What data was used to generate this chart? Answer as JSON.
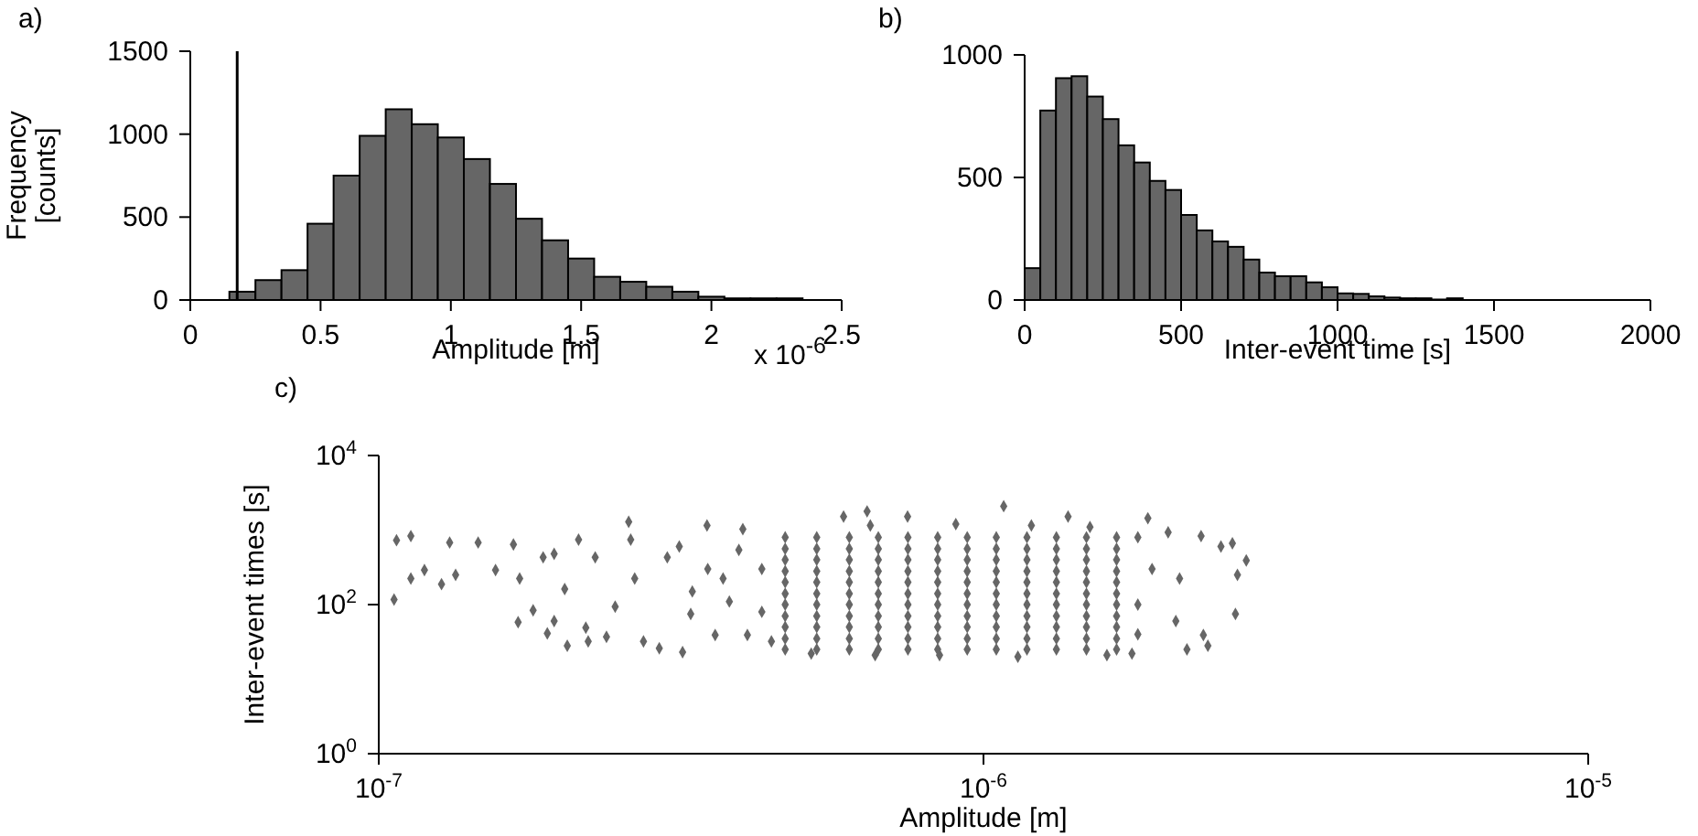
{
  "chart_data": [
    {
      "type": "histogram",
      "xlabel": "Amplitude [m]",
      "ylabel": "Frequency [counts]",
      "annotations": [
        "a)",
        "x 10$^{-6}$"
      ],
      "color": "#666666",
      "bins": [
        0.15,
        0.25,
        0.35,
        0.45,
        0.55,
        0.65,
        0.75,
        0.85,
        0.95,
        1.05,
        1.15,
        1.25,
        1.35,
        1.45,
        1.55,
        1.65,
        1.75,
        1.85,
        1.95,
        2.05,
        2.15,
        2.25,
        2.35
      ],
      "values": [
        50,
        120,
        180,
        460,
        750,
        990,
        1150,
        1060,
        980,
        850,
        700,
        490,
        360,
        250,
        140,
        110,
        80,
        50,
        20,
        10,
        10,
        10
      ],
      "xlim": [
        0,
        2.5
      ],
      "xticks": [
        0,
        0.5,
        1,
        1.5,
        2,
        2.5
      ],
      "ylim": [
        0,
        1500
      ],
      "yticks": [
        0,
        500,
        1000,
        1500
      ],
      "ref_lines": [
        {
          "axis": "x",
          "value": 0.18,
          "color": "#000000"
        }
      ]
    },
    {
      "type": "histogram",
      "xlabel": "Inter-event time [s]",
      "annotations": [
        "b)"
      ],
      "color": "#666666",
      "bins": [
        0,
        50,
        100,
        150,
        200,
        250,
        300,
        350,
        400,
        450,
        500,
        550,
        600,
        650,
        700,
        750,
        800,
        850,
        900,
        950,
        1000,
        1050,
        1100,
        1150,
        1200,
        1250,
        1300,
        1350,
        1400
      ],
      "values": [
        130,
        773,
        905,
        913,
        830,
        738,
        631,
        561,
        486,
        449,
        347,
        284,
        239,
        217,
        165,
        112,
        97,
        97,
        72,
        52,
        27,
        25,
        15,
        10,
        7,
        7,
        2,
        7
      ],
      "xlim": [
        0,
        2000
      ],
      "xticks": [
        0,
        500,
        1000,
        1500,
        2000
      ],
      "ylim": [
        0,
        1000
      ],
      "yticks": [
        0,
        500,
        1000
      ]
    },
    {
      "type": "scatter",
      "xlabel": "Amplitude [m]",
      "ylabel": "Inter-event times [s]",
      "annotations": [
        "c)"
      ],
      "color": "#666666",
      "marker": "diamond",
      "log": "xy",
      "xlim": [
        1e-07,
        1e-05
      ],
      "xticks": [
        {
          "value": 1e-07,
          "label": "10$^{-7}$"
        },
        {
          "value": 1e-06,
          "label": "10$^{-6}$"
        },
        {
          "value": 1e-05,
          "label": "10$^{-5}$"
        }
      ],
      "ylim": [
        1,
        10000
      ],
      "yticks": [
        {
          "value": 1,
          "label": "10$^{0}$"
        },
        {
          "value": 100,
          "label": "10$^{2}$"
        },
        {
          "value": 10000,
          "label": "10$^{4}$"
        }
      ],
      "x": [
        1.06e-07,
        1.07e-07,
        1.13e-07,
        1.13e-07,
        1.19e-07,
        1.27e-07,
        1.31e-07,
        1.34e-07,
        1.46e-07,
        1.56e-07,
        1.67e-07,
        1.7e-07,
        1.71e-07,
        1.8e-07,
        1.87e-07,
        1.9e-07,
        1.95e-07,
        1.95e-07,
        2.05e-07,
        2.03e-07,
        2.14e-07,
        2.2e-07,
        2.22e-07,
        2.28e-07,
        2.38e-07,
        2.46e-07,
        2.59e-07,
        2.61e-07,
        2.74e-07,
        2.65e-07,
        2.91e-07,
        3e-07,
        3.18e-07,
        3.14e-07,
        3.28e-07,
        3.49e-07,
        3.6e-07,
        3.71e-07,
        3.94e-07,
        4e-07,
        4.07e-07,
        4.46e-07,
        3.3e-07,
        3.8e-07,
        4.3e-07,
        4.3e-07,
        3.5e-07,
        5.19e-07,
        5.87e-07,
        6.42e-07,
        6.62e-07,
        7.49e-07,
        8.46e-07,
        1.08e-06,
        1.14e-06,
        1.38e-06,
        1.6e-06,
        1.87e-06,
        1.76e-06,
        2.02e-06,
        2.08e-06,
        2.11e-06,
        2.17e-06,
        2.29e-06,
        2.31e-06,
        2.35e-06,
        2.47e-06,
        2.58e-06,
        2.61e-06,
        2.63e-06,
        2.72e-06,
        6.5e-07,
        9e-07,
        1.2e-06,
        1.5e-06,
        1.8e-06,
        1.8e-06,
        1.8e-06,
        1.9e-06,
        4.7e-07,
        4.7e-07,
        4.7e-07,
        4.7e-07,
        4.7e-07,
        4.7e-07,
        4.7e-07,
        4.7e-07,
        4.7e-07,
        4.7e-07,
        4.7e-07,
        5.3e-07,
        5.3e-07,
        5.3e-07,
        5.3e-07,
        5.3e-07,
        5.3e-07,
        5.3e-07,
        5.3e-07,
        5.3e-07,
        5.3e-07,
        5.3e-07,
        6e-07,
        6e-07,
        6e-07,
        6e-07,
        6e-07,
        6e-07,
        6e-07,
        6e-07,
        6e-07,
        6e-07,
        6e-07,
        6.7e-07,
        6.7e-07,
        6.7e-07,
        6.7e-07,
        6.7e-07,
        6.7e-07,
        6.7e-07,
        6.7e-07,
        6.7e-07,
        6.7e-07,
        6.7e-07,
        7.5e-07,
        7.5e-07,
        7.5e-07,
        7.5e-07,
        7.5e-07,
        7.5e-07,
        7.5e-07,
        7.5e-07,
        7.5e-07,
        7.5e-07,
        7.5e-07,
        8.4e-07,
        8.4e-07,
        8.4e-07,
        8.4e-07,
        8.4e-07,
        8.4e-07,
        8.4e-07,
        8.4e-07,
        8.4e-07,
        8.4e-07,
        8.4e-07,
        9.4e-07,
        9.4e-07,
        9.4e-07,
        9.4e-07,
        9.4e-07,
        9.4e-07,
        9.4e-07,
        9.4e-07,
        9.4e-07,
        9.4e-07,
        9.4e-07,
        1.05e-06,
        1.05e-06,
        1.05e-06,
        1.05e-06,
        1.05e-06,
        1.05e-06,
        1.05e-06,
        1.05e-06,
        1.05e-06,
        1.05e-06,
        1.05e-06,
        1.18e-06,
        1.18e-06,
        1.18e-06,
        1.18e-06,
        1.18e-06,
        1.18e-06,
        1.18e-06,
        1.18e-06,
        1.18e-06,
        1.18e-06,
        1.18e-06,
        1.32e-06,
        1.32e-06,
        1.32e-06,
        1.32e-06,
        1.32e-06,
        1.32e-06,
        1.32e-06,
        1.32e-06,
        1.32e-06,
        1.32e-06,
        1.32e-06,
        1.48e-06,
        1.48e-06,
        1.48e-06,
        1.48e-06,
        1.48e-06,
        1.48e-06,
        1.48e-06,
        1.48e-06,
        1.48e-06,
        1.48e-06,
        1.48e-06,
        1.66e-06,
        1.66e-06,
        1.66e-06,
        1.66e-06,
        1.66e-06,
        1.66e-06,
        1.66e-06,
        1.66e-06,
        1.66e-06,
        1.66e-06,
        1.66e-06
      ],
      "values": [
        117,
        730,
        830,
        224,
        290,
        188,
        680,
        250,
        680,
        290,
        640,
        58,
        224,
        84,
        430,
        41,
        480,
        60,
        28,
        162,
        745,
        49,
        32,
        430,
        37,
        94,
        1290,
        745,
        32,
        224,
        26,
        430,
        23,
        600,
        75,
        1150,
        39,
        224,
        540,
        1030,
        39,
        32,
        150,
        110,
        300,
        80,
        300,
        22,
        1520,
        1780,
        21,
        1520,
        21,
        2090,
        20,
        1520,
        21,
        1440,
        22,
        930,
        60,
        224,
        25,
        830,
        39,
        28,
        600,
        665,
        75,
        250,
        390,
        1150,
        1200,
        1150,
        1100,
        800,
        100,
        40,
        300,
        25,
        35,
        50,
        70,
        100,
        140,
        200,
        280,
        400,
        560,
        800,
        25,
        35,
        50,
        70,
        100,
        140,
        200,
        280,
        400,
        560,
        800,
        25,
        35,
        50,
        70,
        100,
        140,
        200,
        280,
        400,
        560,
        800,
        25,
        35,
        50,
        70,
        100,
        140,
        200,
        280,
        400,
        560,
        800,
        25,
        35,
        50,
        70,
        100,
        140,
        200,
        280,
        400,
        560,
        800,
        25,
        35,
        50,
        70,
        100,
        140,
        200,
        280,
        400,
        560,
        800,
        25,
        35,
        50,
        70,
        100,
        140,
        200,
        280,
        400,
        560,
        800,
        25,
        35,
        50,
        70,
        100,
        140,
        200,
        280,
        400,
        560,
        800,
        25,
        35,
        50,
        70,
        100,
        140,
        200,
        280,
        400,
        560,
        800,
        25,
        35,
        50,
        70,
        100,
        140,
        200,
        280,
        400,
        560,
        800,
        25,
        35,
        50,
        70,
        100,
        140,
        200,
        280,
        400,
        560,
        800,
        25,
        35,
        50,
        70,
        100,
        140,
        200,
        280,
        400,
        560,
        800
      ]
    }
  ]
}
